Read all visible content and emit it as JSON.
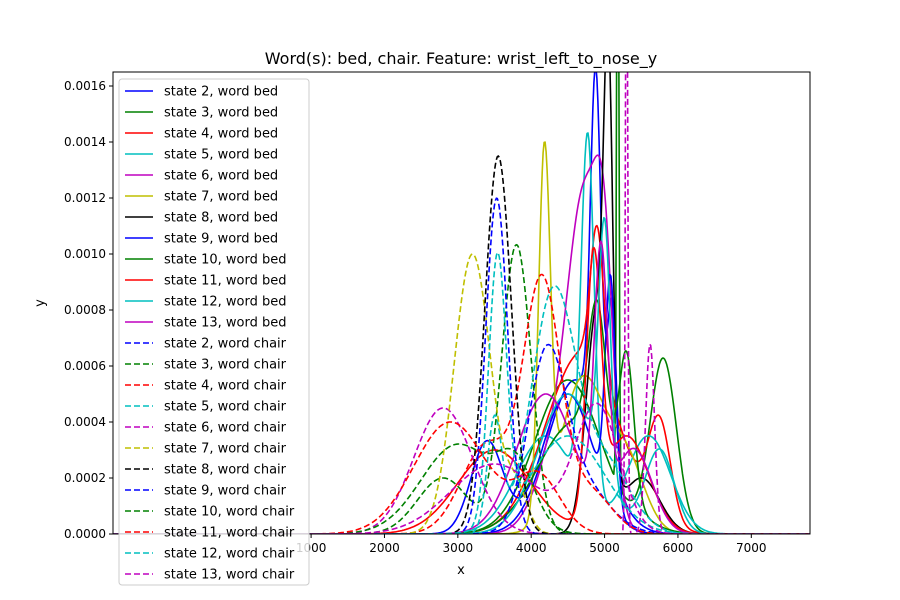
{
  "chart_data": {
    "type": "line",
    "title": "Word(s): bed, chair. Feature: wrist_left_to_nose_y",
    "xlabel": "x",
    "ylabel": "y",
    "xlim": [
      -1700,
      7800
    ],
    "ylim": [
      0,
      0.00165
    ],
    "xticks": [
      {
        "v": 1000,
        "label": "1000"
      },
      {
        "v": 2000,
        "label": "2000"
      },
      {
        "v": 3000,
        "label": "3000"
      },
      {
        "v": 4000,
        "label": "4000"
      },
      {
        "v": 5000,
        "label": "5000"
      },
      {
        "v": 6000,
        "label": "6000"
      },
      {
        "v": 7000,
        "label": "7000"
      }
    ],
    "yticks": [
      {
        "v": 0,
        "label": "0.0000"
      },
      {
        "v": 0.0002,
        "label": "0.0002"
      },
      {
        "v": 0.0004,
        "label": "0.0004"
      },
      {
        "v": 0.0006,
        "label": "0.0006"
      },
      {
        "v": 0.0008,
        "label": "0.0008"
      },
      {
        "v": 0.001,
        "label": "0.0010"
      },
      {
        "v": 0.0012,
        "label": "0.0012"
      },
      {
        "v": 0.0014,
        "label": "0.0014"
      },
      {
        "v": 0.0016,
        "label": "0.0016"
      }
    ],
    "legend": "upper-left",
    "grid": false,
    "series": [
      {
        "name": "state 2, word bed",
        "color": "#0000ff",
        "dash": "solid",
        "components": [
          [
            4600,
            380,
            0.00055
          ],
          [
            4880,
            70,
            0.00125
          ],
          [
            5100,
            60,
            0.0006
          ]
        ]
      },
      {
        "name": "state 3, word bed",
        "color": "#008000",
        "dash": "solid",
        "components": [
          [
            4500,
            450,
            0.00055
          ],
          [
            5180,
            15,
            0.0025
          ],
          [
            5800,
            180,
            0.00062
          ]
        ]
      },
      {
        "name": "state 4, word bed",
        "color": "#ff0000",
        "dash": "solid",
        "components": [
          [
            4700,
            500,
            0.00065
          ],
          [
            4900,
            90,
            0.0005
          ],
          [
            5750,
            150,
            0.00035
          ]
        ]
      },
      {
        "name": "state 5, word bed",
        "color": "#00bfbf",
        "dash": "solid",
        "components": [
          [
            4200,
            400,
            0.00035
          ],
          [
            4770,
            90,
            0.0013
          ],
          [
            5600,
            300,
            0.00035
          ]
        ]
      },
      {
        "name": "state 6, word bed",
        "color": "#bf00bf",
        "dash": "solid",
        "components": [
          [
            4400,
            300,
            0.00032
          ],
          [
            4750,
            230,
            0.00105
          ],
          [
            5000,
            120,
            0.0006
          ]
        ]
      },
      {
        "name": "state 7, word bed",
        "color": "#bfbf00",
        "dash": "solid",
        "components": [
          [
            4180,
            80,
            0.00128
          ],
          [
            4700,
            300,
            0.00055
          ],
          [
            5300,
            250,
            0.00025
          ]
        ]
      },
      {
        "name": "state 8, word bed",
        "color": "#000000",
        "dash": "solid",
        "components": [
          [
            4900,
            150,
            0.0008
          ],
          [
            5050,
            60,
            0.0013
          ],
          [
            5500,
            250,
            0.0002
          ]
        ]
      },
      {
        "name": "state 9, word bed",
        "color": "#0000ff",
        "dash": "solid",
        "components": [
          [
            3400,
            220,
            0.00033
          ],
          [
            4500,
            350,
            0.0005
          ],
          [
            5080,
            70,
            0.0008
          ]
        ]
      },
      {
        "name": "state 10, word bed",
        "color": "#008000",
        "dash": "solid",
        "components": [
          [
            4600,
            500,
            0.0004
          ],
          [
            4900,
            120,
            0.0005
          ],
          [
            5300,
            100,
            0.0005
          ]
        ]
      },
      {
        "name": "state 11, word bed",
        "color": "#ff0000",
        "dash": "solid",
        "components": [
          [
            3500,
            500,
            0.0003
          ],
          [
            4850,
            100,
            0.0009
          ],
          [
            5300,
            300,
            0.00035
          ]
        ]
      },
      {
        "name": "state 12, word bed",
        "color": "#00bfbf",
        "dash": "solid",
        "components": [
          [
            4500,
            400,
            0.0005
          ],
          [
            5000,
            80,
            0.0009
          ],
          [
            5750,
            200,
            0.0003
          ]
        ]
      },
      {
        "name": "state 13, word bed",
        "color": "#bf00bf",
        "dash": "solid",
        "components": [
          [
            4200,
            400,
            0.0005
          ],
          [
            4950,
            90,
            0.0009
          ],
          [
            5400,
            250,
            0.0003
          ]
        ]
      },
      {
        "name": "state 2, word chair",
        "color": "#0000ff",
        "dash": "dashed",
        "components": [
          [
            4200,
            250,
            0.00055
          ],
          [
            4600,
            400,
            0.0002
          ]
        ]
      },
      {
        "name": "state 3, word chair",
        "color": "#008000",
        "dash": "dashed",
        "components": [
          [
            2800,
            350,
            0.0002
          ],
          [
            3800,
            200,
            0.00103
          ]
        ]
      },
      {
        "name": "state 4, word chair",
        "color": "#ff0000",
        "dash": "dashed",
        "components": [
          [
            3400,
            350,
            0.00032
          ],
          [
            4150,
            250,
            0.00088
          ],
          [
            4800,
            300,
            0.00015
          ]
        ]
      },
      {
        "name": "state 5, word chair",
        "color": "#00bfbf",
        "dash": "dashed",
        "components": [
          [
            3500,
            100,
            0.0004
          ],
          [
            4300,
            300,
            0.00085
          ],
          [
            5000,
            350,
            0.00025
          ]
        ]
      },
      {
        "name": "state 6, word chair",
        "color": "#bf00bf",
        "dash": "dashed",
        "components": [
          [
            2800,
            400,
            0.00045
          ],
          [
            5300,
            15,
            0.0025
          ],
          [
            5620,
            60,
            0.00068
          ]
        ]
      },
      {
        "name": "state 7, word chair",
        "color": "#bfbf00",
        "dash": "dashed",
        "components": [
          [
            3200,
            250,
            0.001
          ],
          [
            3800,
            150,
            0.00015
          ]
        ]
      },
      {
        "name": "state 8, word chair",
        "color": "#000000",
        "dash": "dashed",
        "components": [
          [
            3550,
            180,
            0.00135
          ]
        ]
      },
      {
        "name": "state 9, word chair",
        "color": "#0000ff",
        "dash": "dashed",
        "components": [
          [
            3530,
            150,
            0.0012
          ]
        ]
      },
      {
        "name": "state 10, word chair",
        "color": "#008000",
        "dash": "dashed",
        "components": [
          [
            3000,
            500,
            0.00032
          ],
          [
            3800,
            250,
            0.0002
          ]
        ]
      },
      {
        "name": "state 11, word chair",
        "color": "#ff0000",
        "dash": "dashed",
        "components": [
          [
            2900,
            500,
            0.0004
          ],
          [
            4100,
            300,
            0.0002
          ]
        ]
      },
      {
        "name": "state 12, word chair",
        "color": "#00bfbf",
        "dash": "dashed",
        "components": [
          [
            3540,
            120,
            0.00095
          ],
          [
            4500,
            500,
            0.00035
          ]
        ]
      },
      {
        "name": "state 13, word chair",
        "color": "#bf00bf",
        "dash": "dashed",
        "components": [
          [
            3500,
            600,
            0.00025
          ],
          [
            4900,
            300,
            0.00045
          ]
        ]
      }
    ]
  }
}
